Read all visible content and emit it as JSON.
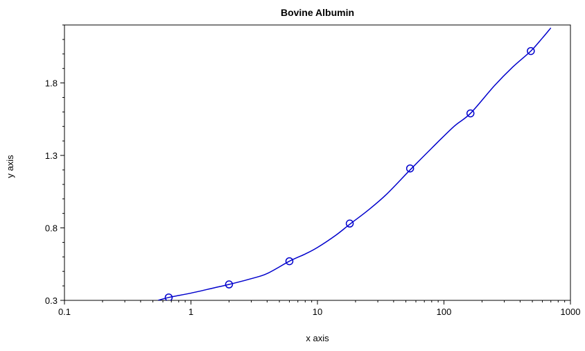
{
  "chart_data": {
    "type": "scatter",
    "title": "Bovine Albumin",
    "xlabel": "x axis",
    "ylabel": "y axis",
    "x_scale": "log",
    "xlim": [
      0.1,
      1000
    ],
    "ylim": [
      0.3,
      2.2
    ],
    "x_ticks": [
      0.1,
      1,
      10,
      100,
      1000
    ],
    "x_tick_labels": [
      "0.1",
      "1",
      "10",
      "100",
      "1000"
    ],
    "y_ticks": [
      0.3,
      0.8,
      1.3,
      1.8
    ],
    "y_tick_labels": [
      "0.3",
      "0.8",
      "1.3",
      "1.8"
    ],
    "grid": false,
    "legend": "none",
    "series": [
      {
        "kind": "points",
        "marker": "open-circle",
        "color": "#0000cc",
        "x": [
          0.667,
          2,
          6,
          18,
          54,
          162,
          486
        ],
        "y": [
          0.32,
          0.41,
          0.57,
          0.83,
          1.21,
          1.59,
          2.02
        ]
      },
      {
        "kind": "fitted-curve",
        "color": "#0000cc",
        "x": [
          0.55,
          0.667,
          1,
          1.5,
          2,
          3,
          4,
          6,
          8,
          10,
          14,
          18,
          25,
          35,
          54,
          80,
          120,
          162,
          250,
          350,
          486,
          600,
          700
        ],
        "y": [
          0.3,
          0.32,
          0.35,
          0.385,
          0.41,
          0.45,
          0.485,
          0.57,
          0.62,
          0.665,
          0.75,
          0.825,
          0.92,
          1.03,
          1.2,
          1.35,
          1.5,
          1.59,
          1.78,
          1.91,
          2.02,
          2.11,
          2.18
        ]
      }
    ]
  }
}
